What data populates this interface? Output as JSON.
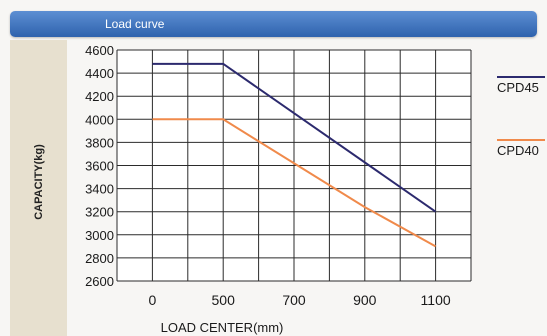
{
  "header": {
    "title": "Load curve"
  },
  "chart_data": {
    "type": "line",
    "title": "Load curve",
    "xlabel": "LOAD CENTER(mm)",
    "ylabel": "CAPACITY(kg)",
    "x_ticks": [
      "0",
      "500",
      "700",
      "900",
      "1100"
    ],
    "y_ticks": [
      "4600",
      "4400",
      "4200",
      "4000",
      "3800",
      "3600",
      "3400",
      "3200",
      "3000",
      "2800",
      "2600"
    ],
    "ylim": [
      2600,
      4600
    ],
    "grid": true,
    "legend_position": "right",
    "series": [
      {
        "name": "CPD45",
        "color": "#2c2a6e",
        "x": [
          0,
          500,
          1100
        ],
        "y": [
          4480,
          4480,
          3200
        ]
      },
      {
        "name": "CPD40",
        "color": "#f08a4b",
        "x": [
          0,
          500,
          900,
          1100
        ],
        "y": [
          4000,
          4000,
          3240,
          2900
        ]
      }
    ]
  }
}
